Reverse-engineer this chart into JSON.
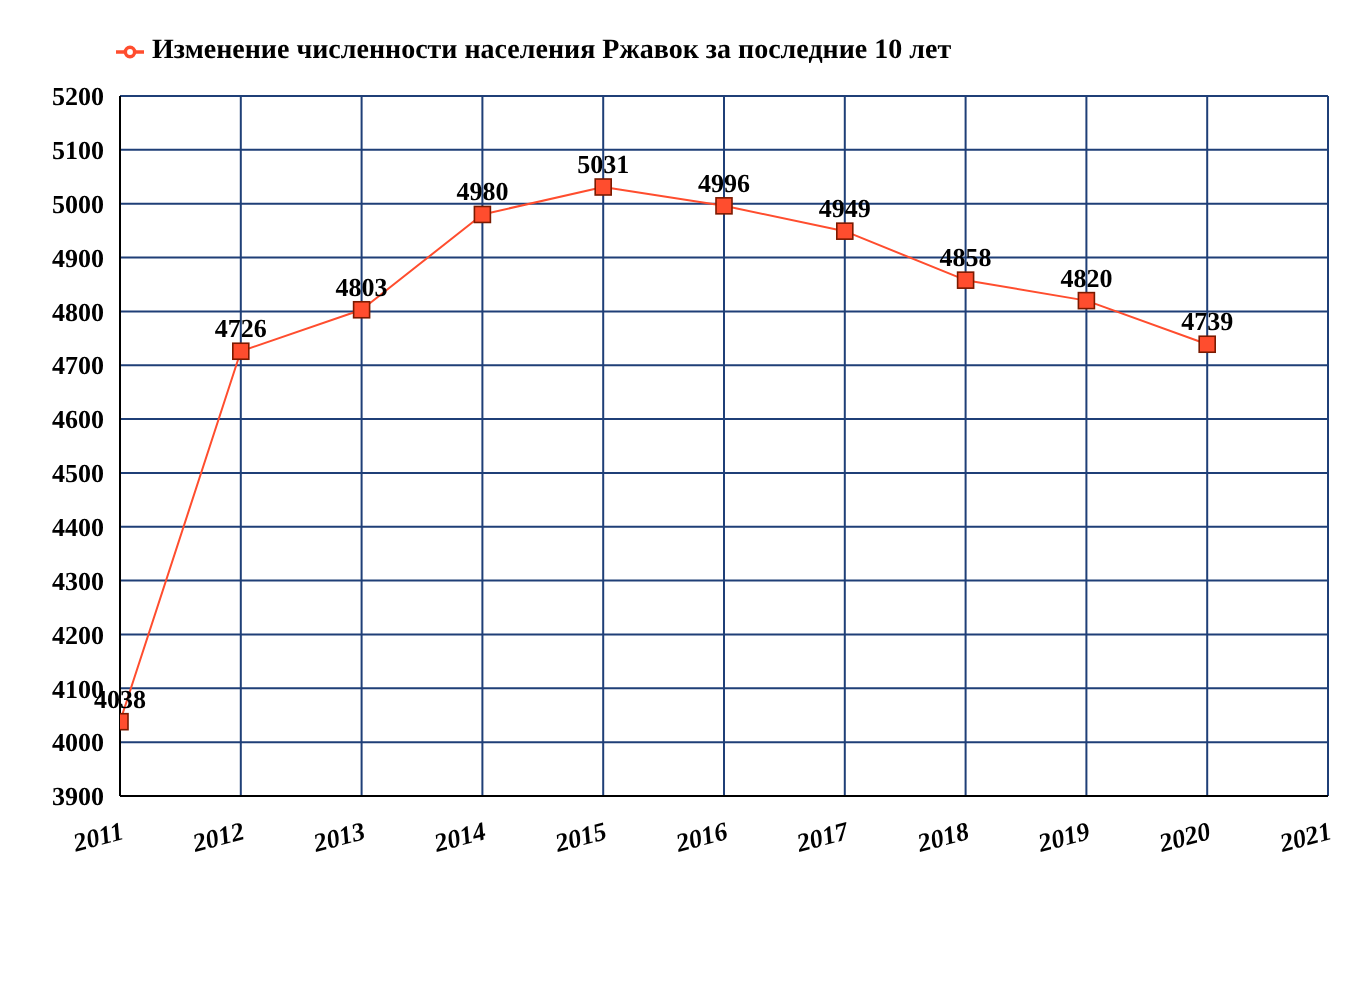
{
  "chart_data": {
    "type": "line",
    "x": [
      2011,
      2012,
      2013,
      2014,
      2015,
      2016,
      2017,
      2018,
      2019,
      2020
    ],
    "series": [
      {
        "name": "Изменение численности населения Ржавок за последние 10 лет",
        "color": "#ff4d2e",
        "values": [
          4038,
          4726,
          4803,
          4980,
          5031,
          4996,
          4949,
          4858,
          4820,
          4739
        ]
      }
    ],
    "xlim": [
      2011,
      2021
    ],
    "xticks": [
      2011,
      2012,
      2013,
      2014,
      2015,
      2016,
      2017,
      2018,
      2019,
      2020,
      2021
    ],
    "ylim": [
      3900,
      5200
    ],
    "yticks": [
      3900,
      4000,
      4100,
      4200,
      4300,
      4400,
      4500,
      4600,
      4700,
      4800,
      4900,
      5000,
      5100,
      5200
    ],
    "grid": true,
    "legend": "top left",
    "marker": "square",
    "line_style": "solid",
    "data_labels": true
  }
}
